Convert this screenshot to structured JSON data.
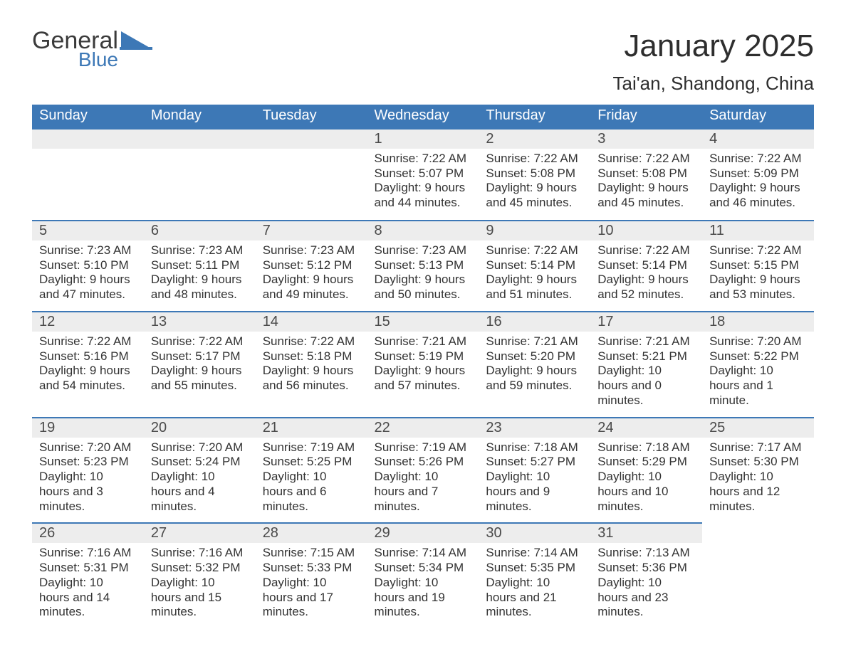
{
  "logo": {
    "word1": "General",
    "word2": "Blue",
    "shape_color": "#3d78b6"
  },
  "title": "January 2025",
  "subtitle": "Tai'an, Shandong, China",
  "calendar": {
    "header_bg": "#3d78b6",
    "header_fg": "#ffffff",
    "daynum_bg": "#ededed",
    "rule_color": "#3d78b6",
    "text_color": "#333333",
    "font_size_header": 20,
    "font_size_daynum": 20,
    "font_size_body": 17,
    "columns": [
      "Sunday",
      "Monday",
      "Tuesday",
      "Wednesday",
      "Thursday",
      "Friday",
      "Saturday"
    ],
    "weeks": [
      [
        null,
        null,
        null,
        {
          "d": "1",
          "sunrise": "7:22 AM",
          "sunset": "5:07 PM",
          "daylight": "9 hours and 44 minutes."
        },
        {
          "d": "2",
          "sunrise": "7:22 AM",
          "sunset": "5:08 PM",
          "daylight": "9 hours and 45 minutes."
        },
        {
          "d": "3",
          "sunrise": "7:22 AM",
          "sunset": "5:08 PM",
          "daylight": "9 hours and 45 minutes."
        },
        {
          "d": "4",
          "sunrise": "7:22 AM",
          "sunset": "5:09 PM",
          "daylight": "9 hours and 46 minutes."
        }
      ],
      [
        {
          "d": "5",
          "sunrise": "7:23 AM",
          "sunset": "5:10 PM",
          "daylight": "9 hours and 47 minutes."
        },
        {
          "d": "6",
          "sunrise": "7:23 AM",
          "sunset": "5:11 PM",
          "daylight": "9 hours and 48 minutes."
        },
        {
          "d": "7",
          "sunrise": "7:23 AM",
          "sunset": "5:12 PM",
          "daylight": "9 hours and 49 minutes."
        },
        {
          "d": "8",
          "sunrise": "7:23 AM",
          "sunset": "5:13 PM",
          "daylight": "9 hours and 50 minutes."
        },
        {
          "d": "9",
          "sunrise": "7:22 AM",
          "sunset": "5:14 PM",
          "daylight": "9 hours and 51 minutes."
        },
        {
          "d": "10",
          "sunrise": "7:22 AM",
          "sunset": "5:14 PM",
          "daylight": "9 hours and 52 minutes."
        },
        {
          "d": "11",
          "sunrise": "7:22 AM",
          "sunset": "5:15 PM",
          "daylight": "9 hours and 53 minutes."
        }
      ],
      [
        {
          "d": "12",
          "sunrise": "7:22 AM",
          "sunset": "5:16 PM",
          "daylight": "9 hours and 54 minutes."
        },
        {
          "d": "13",
          "sunrise": "7:22 AM",
          "sunset": "5:17 PM",
          "daylight": "9 hours and 55 minutes."
        },
        {
          "d": "14",
          "sunrise": "7:22 AM",
          "sunset": "5:18 PM",
          "daylight": "9 hours and 56 minutes."
        },
        {
          "d": "15",
          "sunrise": "7:21 AM",
          "sunset": "5:19 PM",
          "daylight": "9 hours and 57 minutes."
        },
        {
          "d": "16",
          "sunrise": "7:21 AM",
          "sunset": "5:20 PM",
          "daylight": "9 hours and 59 minutes."
        },
        {
          "d": "17",
          "sunrise": "7:21 AM",
          "sunset": "5:21 PM",
          "daylight": "10 hours and 0 minutes."
        },
        {
          "d": "18",
          "sunrise": "7:20 AM",
          "sunset": "5:22 PM",
          "daylight": "10 hours and 1 minute."
        }
      ],
      [
        {
          "d": "19",
          "sunrise": "7:20 AM",
          "sunset": "5:23 PM",
          "daylight": "10 hours and 3 minutes."
        },
        {
          "d": "20",
          "sunrise": "7:20 AM",
          "sunset": "5:24 PM",
          "daylight": "10 hours and 4 minutes."
        },
        {
          "d": "21",
          "sunrise": "7:19 AM",
          "sunset": "5:25 PM",
          "daylight": "10 hours and 6 minutes."
        },
        {
          "d": "22",
          "sunrise": "7:19 AM",
          "sunset": "5:26 PM",
          "daylight": "10 hours and 7 minutes."
        },
        {
          "d": "23",
          "sunrise": "7:18 AM",
          "sunset": "5:27 PM",
          "daylight": "10 hours and 9 minutes."
        },
        {
          "d": "24",
          "sunrise": "7:18 AM",
          "sunset": "5:29 PM",
          "daylight": "10 hours and 10 minutes."
        },
        {
          "d": "25",
          "sunrise": "7:17 AM",
          "sunset": "5:30 PM",
          "daylight": "10 hours and 12 minutes."
        }
      ],
      [
        {
          "d": "26",
          "sunrise": "7:16 AM",
          "sunset": "5:31 PM",
          "daylight": "10 hours and 14 minutes."
        },
        {
          "d": "27",
          "sunrise": "7:16 AM",
          "sunset": "5:32 PM",
          "daylight": "10 hours and 15 minutes."
        },
        {
          "d": "28",
          "sunrise": "7:15 AM",
          "sunset": "5:33 PM",
          "daylight": "10 hours and 17 minutes."
        },
        {
          "d": "29",
          "sunrise": "7:14 AM",
          "sunset": "5:34 PM",
          "daylight": "10 hours and 19 minutes."
        },
        {
          "d": "30",
          "sunrise": "7:14 AM",
          "sunset": "5:35 PM",
          "daylight": "10 hours and 21 minutes."
        },
        {
          "d": "31",
          "sunrise": "7:13 AM",
          "sunset": "5:36 PM",
          "daylight": "10 hours and 23 minutes."
        },
        null
      ]
    ],
    "labels": {
      "sunrise": "Sunrise:",
      "sunset": "Sunset:",
      "daylight": "Daylight:"
    }
  }
}
